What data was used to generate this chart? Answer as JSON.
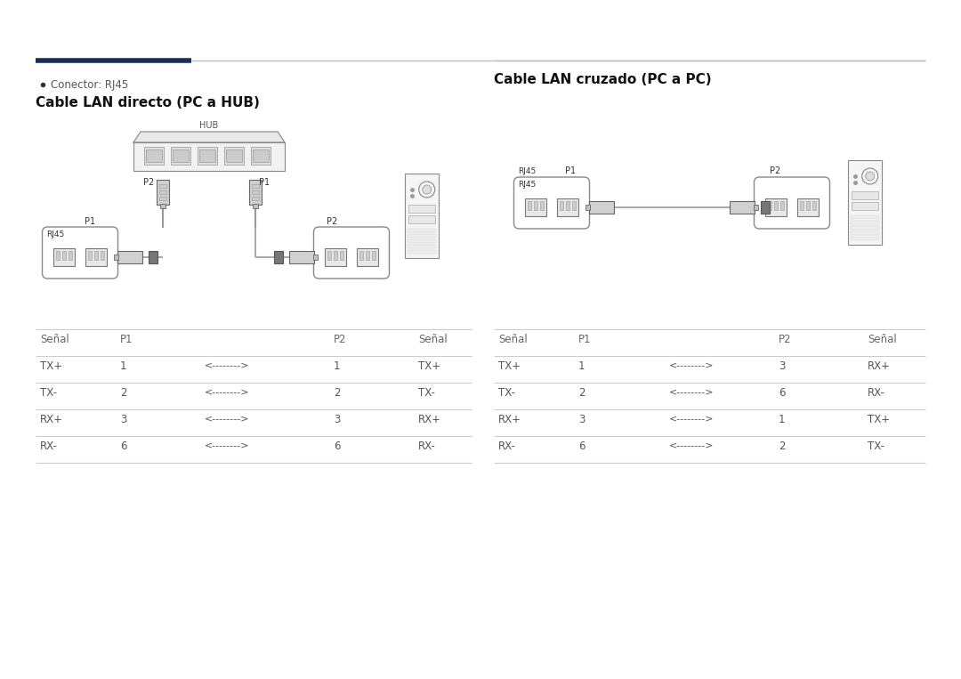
{
  "bg_color": "#ffffff",
  "text_color": "#333333",
  "line_color": "#aaaaaa",
  "header_line_color1": "#1a2e5a",
  "header_line_color2": "#c0c0c0",
  "bullet_text": "Conector: RJ45",
  "left_title": "Cable LAN directo (PC a HUB)",
  "right_title": "Cable LAN cruzado (PC a PC)",
  "left_table": {
    "headers": [
      "Señal",
      "P1",
      "",
      "P2",
      "Señal"
    ],
    "rows": [
      [
        "TX+",
        "1",
        "<-------->",
        "1",
        "TX+"
      ],
      [
        "TX-",
        "2",
        "<-------->",
        "2",
        "TX-"
      ],
      [
        "RX+",
        "3",
        "<-------->",
        "3",
        "RX+"
      ],
      [
        "RX-",
        "6",
        "<-------->",
        "6",
        "RX-"
      ]
    ]
  },
  "right_table": {
    "headers": [
      "Señal",
      "P1",
      "",
      "P2",
      "Señal"
    ],
    "rows": [
      [
        "TX+",
        "1",
        "<-------->",
        "3",
        "RX+"
      ],
      [
        "TX-",
        "2",
        "<-------->",
        "6",
        "RX-"
      ],
      [
        "RX+",
        "3",
        "<-------->",
        "1",
        "TX+"
      ],
      [
        "RX-",
        "6",
        "<-------->",
        "2",
        "TX-"
      ]
    ]
  }
}
